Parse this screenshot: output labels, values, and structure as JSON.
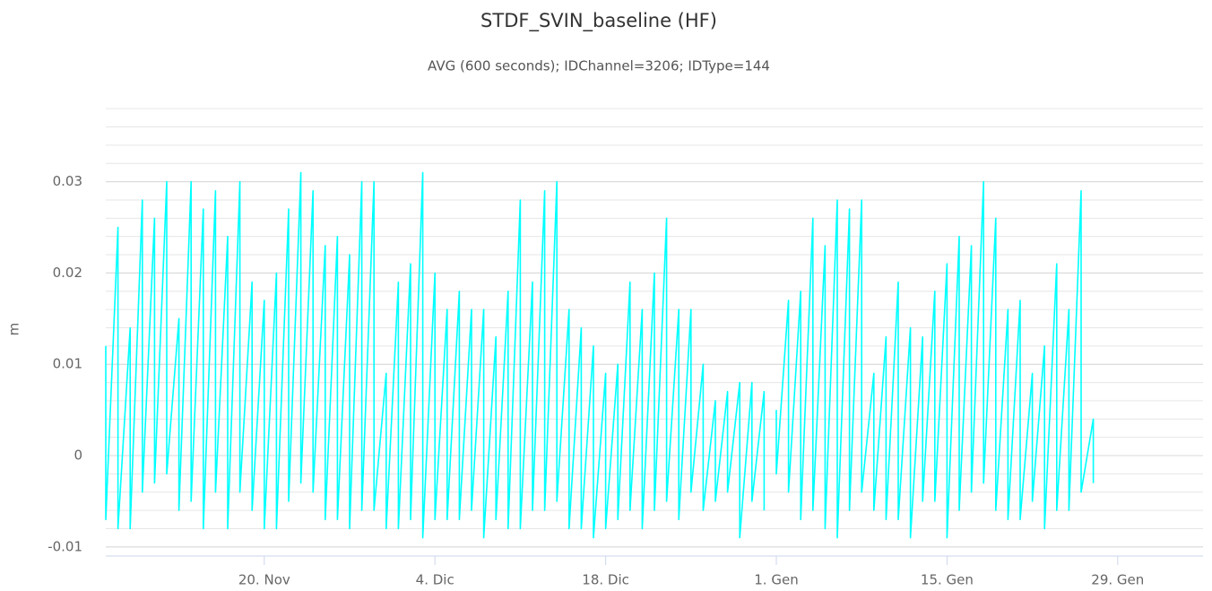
{
  "chart_data": {
    "type": "line",
    "title": "STDF_SVIN_baseline (HF)",
    "subtitle": "AVG (600 seconds); IDChannel=3206; IDType=144",
    "y_label": "m",
    "x": [
      "7. Nov",
      "7. Nov",
      "8. Nov",
      "8. Nov",
      "9. Nov",
      "9. Nov",
      "10. Nov",
      "10. Nov",
      "11. Nov",
      "11. Nov",
      "12. Nov",
      "12. Nov",
      "13. Nov",
      "13. Nov",
      "14. Nov",
      "14. Nov",
      "15. Nov",
      "15. Nov",
      "16. Nov",
      "16. Nov",
      "17. Nov",
      "17. Nov",
      "18. Nov",
      "18. Nov",
      "19. Nov",
      "19. Nov",
      "20. Nov",
      "20. Nov",
      "21. Nov",
      "21. Nov",
      "22. Nov",
      "22. Nov",
      "23. Nov",
      "23. Nov",
      "24. Nov",
      "24. Nov",
      "25. Nov",
      "25. Nov",
      "26. Nov",
      "26. Nov",
      "27. Nov",
      "27. Nov",
      "28. Nov",
      "28. Nov",
      "29. Nov",
      "29. Nov",
      "30. Nov",
      "30. Nov",
      "1. Dic",
      "1. Dic",
      "2. Dic",
      "2. Dic",
      "3. Dic",
      "3. Dic",
      "4. Dic",
      "4. Dic",
      "5. Dic",
      "5. Dic",
      "6. Dic",
      "6. Dic",
      "7. Dic",
      "7. Dic",
      "8. Dic",
      "8. Dic",
      "9. Dic",
      "9. Dic",
      "10. Dic",
      "10. Dic",
      "11. Dic",
      "11. Dic",
      "12. Dic",
      "12. Dic",
      "13. Dic",
      "13. Dic",
      "14. Dic",
      "14. Dic",
      "15. Dic",
      "15. Dic",
      "16. Dic",
      "16. Dic",
      "17. Dic",
      "17. Dic",
      "18. Dic",
      "18. Dic",
      "19. Dic",
      "19. Dic",
      "20. Dic",
      "20. Dic",
      "21. Dic",
      "21. Dic",
      "22. Dic",
      "22. Dic",
      "23. Dic",
      "23. Dic",
      "24. Dic",
      "24. Dic",
      "25. Dic",
      "25. Dic",
      "26. Dic",
      "26. Dic",
      "27. Dic",
      "27. Dic",
      "28. Dic",
      "28. Dic",
      "29. Dic",
      "29. Dic",
      "30. Dic",
      "30. Dic",
      "31. Dic",
      "31. Dic",
      "1. Gen",
      "1. Gen",
      "1. Gen",
      "2. Gen",
      "2. Gen",
      "3. Gen",
      "3. Gen",
      "4. Gen",
      "4. Gen",
      "5. Gen",
      "5. Gen",
      "6. Gen",
      "6. Gen",
      "7. Gen",
      "7. Gen",
      "8. Gen",
      "8. Gen",
      "9. Gen",
      "9. Gen",
      "10. Gen",
      "10. Gen",
      "11. Gen",
      "11. Gen",
      "12. Gen",
      "12. Gen",
      "13. Gen",
      "13. Gen",
      "14. Gen",
      "14. Gen",
      "15. Gen",
      "15. Gen",
      "16. Gen",
      "16. Gen",
      "17. Gen",
      "17. Gen",
      "18. Gen",
      "18. Gen",
      "19. Gen",
      "19. Gen",
      "20. Gen",
      "20. Gen",
      "21. Gen",
      "21. Gen",
      "22. Gen",
      "22. Gen",
      "23. Gen",
      "23. Gen",
      "24. Gen",
      "24. Gen",
      "25. Gen",
      "25. Gen",
      "26. Gen",
      "26. Gen",
      "27. Gen",
      "27. Gen"
    ],
    "series": [
      {
        "color": "#00ffff",
        "values": [
          0.012,
          -0.007,
          0.025,
          -0.008,
          0.014,
          -0.008,
          0.028,
          -0.004,
          0.026,
          -0.003,
          0.03,
          -0.002,
          0.015,
          -0.006,
          0.03,
          -0.005,
          0.027,
          -0.008,
          0.029,
          -0.004,
          0.024,
          -0.008,
          0.03,
          -0.004,
          0.019,
          -0.006,
          0.017,
          -0.008,
          0.02,
          -0.008,
          0.027,
          -0.005,
          0.031,
          -0.003,
          0.029,
          -0.004,
          0.023,
          -0.007,
          0.024,
          -0.007,
          0.022,
          -0.008,
          0.03,
          -0.006,
          0.03,
          -0.006,
          0.009,
          -0.008,
          0.019,
          -0.008,
          0.021,
          -0.007,
          0.031,
          -0.009,
          0.02,
          -0.007,
          0.016,
          -0.007,
          0.018,
          -0.007,
          0.016,
          -0.006,
          0.016,
          -0.009,
          0.013,
          -0.007,
          0.018,
          -0.008,
          0.028,
          -0.008,
          0.019,
          -0.006,
          0.029,
          -0.006,
          0.03,
          -0.005,
          0.016,
          -0.008,
          0.014,
          -0.008,
          0.012,
          -0.009,
          0.009,
          -0.008,
          0.01,
          -0.007,
          0.019,
          -0.006,
          0.016,
          -0.008,
          0.02,
          -0.006,
          0.026,
          -0.005,
          0.016,
          -0.007,
          0.016,
          -0.004,
          0.01,
          -0.006,
          0.006,
          -0.005,
          0.007,
          -0.004,
          0.008,
          -0.009,
          0.008,
          -0.005,
          0.007,
          -0.006,
          null,
          0.005,
          -0.002,
          0.017,
          -0.004,
          0.018,
          -0.007,
          0.026,
          -0.006,
          0.023,
          -0.008,
          0.028,
          -0.009,
          0.027,
          -0.006,
          0.028,
          -0.004,
          0.009,
          -0.006,
          0.013,
          -0.007,
          0.019,
          -0.007,
          0.014,
          -0.009,
          0.013,
          -0.005,
          0.018,
          -0.005,
          0.021,
          -0.009,
          0.024,
          -0.006,
          0.023,
          -0.004,
          0.03,
          -0.003,
          0.026,
          -0.006,
          0.016,
          -0.007,
          0.017,
          -0.007,
          0.009,
          -0.005,
          0.012,
          -0.008,
          0.021,
          -0.006,
          0.016,
          -0.006,
          0.029,
          -0.004,
          0.004,
          -0.003
        ]
      }
    ],
    "xlim": [
      "7. Nov",
      "5. Feb"
    ],
    "xticks": [
      "20. Nov",
      "4. Dic",
      "18. Dic",
      "1. Gen",
      "15. Gen",
      "29. Gen"
    ],
    "ylim": [
      -0.011,
      0.0388
    ],
    "yticks": [
      -0.01,
      0,
      0.01,
      0.02,
      0.03
    ],
    "minor_yticks": [
      -0.01,
      -0.008,
      -0.006,
      -0.004,
      -0.002,
      0,
      0.002,
      0.004,
      0.006,
      0.008,
      0.01,
      0.012,
      0.014,
      0.016,
      0.018,
      0.02,
      0.022,
      0.024,
      0.026,
      0.028,
      0.03,
      0.032,
      0.034,
      0.036,
      0.038
    ],
    "grid": true
  }
}
